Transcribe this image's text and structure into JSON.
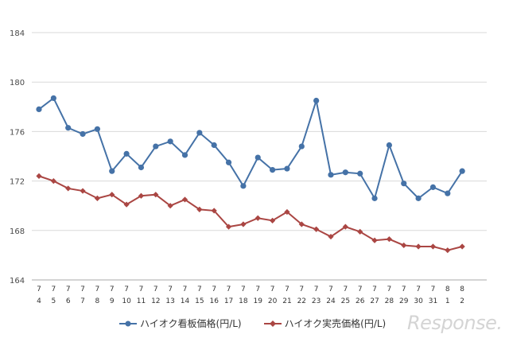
{
  "chart_data": {
    "type": "line",
    "title": "",
    "xlabel": "",
    "ylabel": "",
    "ylim": [
      164,
      184
    ],
    "yticks": [
      164,
      168,
      172,
      176,
      180,
      184
    ],
    "categories": [
      {
        "month": "7",
        "day": "4"
      },
      {
        "month": "7",
        "day": "5"
      },
      {
        "month": "7",
        "day": "6"
      },
      {
        "month": "7",
        "day": "7"
      },
      {
        "month": "7",
        "day": "8"
      },
      {
        "month": "7",
        "day": "9"
      },
      {
        "month": "7",
        "day": "10"
      },
      {
        "month": "7",
        "day": "11"
      },
      {
        "month": "7",
        "day": "12"
      },
      {
        "month": "7",
        "day": "13"
      },
      {
        "month": "7",
        "day": "14"
      },
      {
        "month": "7",
        "day": "15"
      },
      {
        "month": "7",
        "day": "16"
      },
      {
        "month": "7",
        "day": "17"
      },
      {
        "month": "7",
        "day": "18"
      },
      {
        "month": "7",
        "day": "19"
      },
      {
        "month": "7",
        "day": "20"
      },
      {
        "month": "7",
        "day": "21"
      },
      {
        "month": "7",
        "day": "22"
      },
      {
        "month": "7",
        "day": "23"
      },
      {
        "month": "7",
        "day": "24"
      },
      {
        "month": "7",
        "day": "25"
      },
      {
        "month": "7",
        "day": "26"
      },
      {
        "month": "7",
        "day": "27"
      },
      {
        "month": "7",
        "day": "28"
      },
      {
        "month": "7",
        "day": "29"
      },
      {
        "month": "7",
        "day": "30"
      },
      {
        "month": "7",
        "day": "31"
      },
      {
        "month": "8",
        "day": "1"
      },
      {
        "month": "8",
        "day": "2"
      }
    ],
    "series": [
      {
        "name": "ハイオク看板価格(円/L)",
        "color": "#4572a7",
        "marker": "circle",
        "values": [
          177.8,
          178.7,
          176.3,
          175.8,
          176.2,
          172.8,
          174.2,
          173.1,
          174.8,
          175.2,
          174.1,
          175.9,
          174.9,
          173.5,
          171.6,
          173.9,
          172.9,
          173.0,
          174.8,
          178.5,
          172.5,
          172.7,
          172.6,
          170.6,
          174.9,
          171.8,
          170.6,
          171.5,
          171.0,
          172.8
        ]
      },
      {
        "name": "ハイオク実売価格(円/L)",
        "color": "#aa4643",
        "marker": "diamond",
        "values": [
          172.4,
          172.0,
          171.4,
          171.2,
          170.6,
          170.9,
          170.1,
          170.8,
          170.9,
          170.0,
          170.5,
          169.7,
          169.6,
          168.3,
          168.5,
          169.0,
          168.8,
          169.5,
          168.5,
          168.1,
          167.5,
          168.3,
          167.9,
          167.2,
          167.3,
          166.8,
          166.7,
          166.7,
          166.4,
          166.7
        ]
      }
    ],
    "legend": "bottom",
    "grid": true
  },
  "watermark": "Response."
}
